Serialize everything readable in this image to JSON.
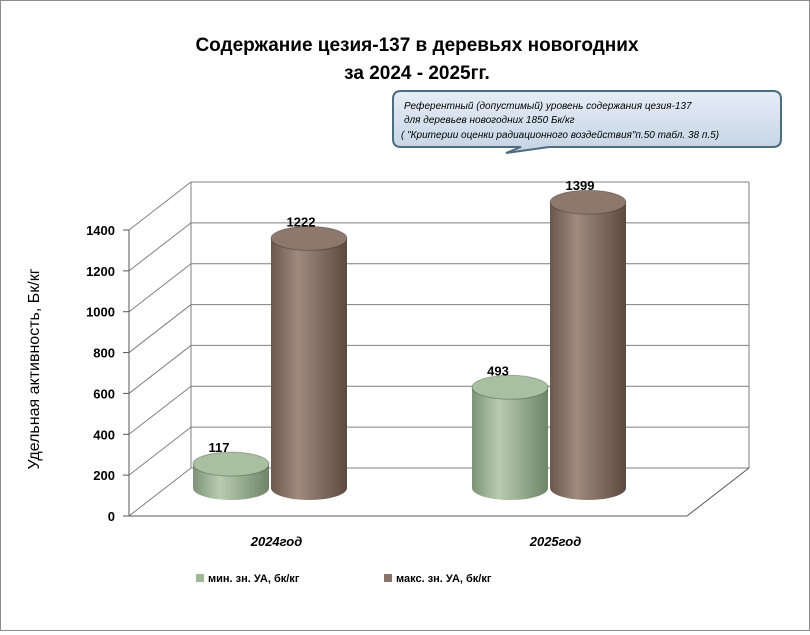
{
  "chart_data": {
    "type": "bar",
    "title_lines": [
      "Содержание цезия-137 в деревьях новогодних",
      "за 2024 - 2025гг."
    ],
    "ylabel": "Удельная активность, Бк/кг",
    "xlabel": "",
    "ylim": [
      0,
      1400
    ],
    "yticks": [
      0,
      200,
      400,
      600,
      800,
      1000,
      1200,
      1400
    ],
    "categories": [
      "2024год",
      "2025год"
    ],
    "series": [
      {
        "name": "мин. зн. УА, бк/кг",
        "values": [
          117,
          493
        ],
        "color": "#9fb796"
      },
      {
        "name": "макс. зн. УА, бк/кг",
        "values": [
          1222,
          1399
        ],
        "color": "#8a7468"
      }
    ],
    "grid": true,
    "legend_position": "bottom",
    "annotation_lines": [
      "Референтный (допустимый) уровень содержания цезия-137",
      "для деревьев новогодних  1850 Бк/кг",
      "( \"Критерии оценки радиационного воздействия\"п.50 табл. 38 п.5)"
    ]
  }
}
